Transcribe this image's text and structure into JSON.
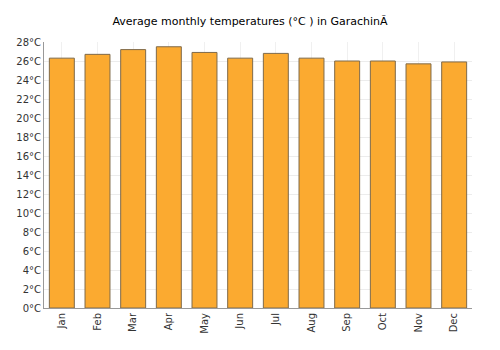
{
  "chart_data": {
    "type": "bar",
    "title": "Average monthly temperatures (°C ) in GarachinÃ",
    "categories": [
      "Jan",
      "Feb",
      "Mar",
      "Apr",
      "May",
      "Jun",
      "Jul",
      "Aug",
      "Sep",
      "Oct",
      "Nov",
      "Dec"
    ],
    "values": [
      26.3,
      26.7,
      27.2,
      27.5,
      26.9,
      26.3,
      26.8,
      26.3,
      26.0,
      26.0,
      25.7,
      25.9
    ],
    "color": "#fbaa30",
    "ylim": [
      0,
      28
    ],
    "yticks": [
      {
        "value": 0,
        "label": "0°C"
      },
      {
        "value": 2,
        "label": "2°C"
      },
      {
        "value": 4,
        "label": "4°C"
      },
      {
        "value": 6,
        "label": "6°C"
      },
      {
        "value": 8,
        "label": "8°C"
      },
      {
        "value": 10,
        "label": "10°C"
      },
      {
        "value": 12,
        "label": "12°C"
      },
      {
        "value": 14,
        "label": "14°C"
      },
      {
        "value": 16,
        "label": "16°C"
      },
      {
        "value": 18,
        "label": "18°C"
      },
      {
        "value": 20,
        "label": "20°C"
      },
      {
        "value": 22,
        "label": "22°C"
      },
      {
        "value": 24,
        "label": "24°C"
      },
      {
        "value": 26,
        "label": "26°C"
      },
      {
        "value": 28,
        "label": "28°C"
      }
    ],
    "grid": true
  }
}
